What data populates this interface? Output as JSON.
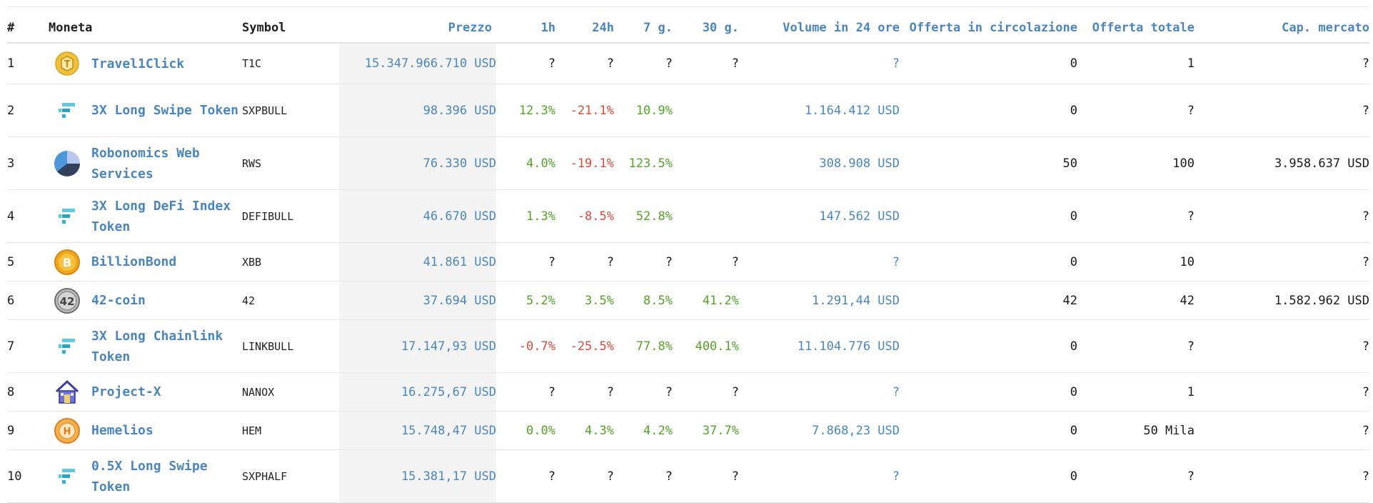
{
  "table": {
    "headers": {
      "rank": "#",
      "coin": "Moneta",
      "symbol": "Symbol",
      "price": "Prezzo",
      "h1": "1h",
      "h24": "24h",
      "d7": "7 g.",
      "d30": "30 g.",
      "volume": "Volume in 24 ore",
      "circ": "Offerta in circolazione",
      "total": "Offerta totale",
      "mcap": "Cap. mercato"
    },
    "rows": [
      {
        "rank": "1",
        "name": "Travel1Click",
        "icon": "travel1click-logo-icon",
        "symbol": "T1C",
        "price": "15.347.966.710 USD",
        "h1": "?",
        "h24": "?",
        "d7": "?",
        "d30": "?",
        "volume": "?",
        "circ": "0",
        "total": "1",
        "mcap": "?"
      },
      {
        "rank": "2",
        "name": "3X Long Swipe Token",
        "icon": "ftx-logo-icon",
        "symbol": "SXPBULL",
        "price": "98.396 USD",
        "h1": "12.3%",
        "h24": "-21.1%",
        "d7": "10.9%",
        "d30": "",
        "volume": "1.164.412 USD",
        "circ": "0",
        "total": "?",
        "mcap": "?"
      },
      {
        "rank": "3",
        "name": "Robonomics Web Services",
        "icon": "robonomics-logo-icon",
        "symbol": "RWS",
        "price": "76.330 USD",
        "h1": "4.0%",
        "h24": "-19.1%",
        "d7": "123.5%",
        "d30": "",
        "volume": "308.908 USD",
        "circ": "50",
        "total": "100",
        "mcap": "3.958.637 USD"
      },
      {
        "rank": "4",
        "name": "3X Long DeFi Index Token",
        "icon": "ftx-logo-icon",
        "symbol": "DEFIBULL",
        "price": "46.670 USD",
        "h1": "1.3%",
        "h24": "-8.5%",
        "d7": "52.8%",
        "d30": "",
        "volume": "147.562 USD",
        "circ": "0",
        "total": "?",
        "mcap": "?"
      },
      {
        "rank": "5",
        "name": "BillionBond",
        "icon": "billionbond-logo-icon",
        "symbol": "XBB",
        "price": "41.861 USD",
        "h1": "?",
        "h24": "?",
        "d7": "?",
        "d30": "?",
        "volume": "?",
        "circ": "0",
        "total": "10",
        "mcap": "?"
      },
      {
        "rank": "6",
        "name": "42-coin",
        "icon": "42coin-logo-icon",
        "symbol": "42",
        "price": "37.694 USD",
        "h1": "5.2%",
        "h24": "3.5%",
        "d7": "8.5%",
        "d30": "41.2%",
        "volume": "1.291,44 USD",
        "circ": "42",
        "total": "42",
        "mcap": "1.582.962 USD"
      },
      {
        "rank": "7",
        "name": "3X Long Chainlink Token",
        "icon": "ftx-logo-icon",
        "symbol": "LINKBULL",
        "price": "17.147,93 USD",
        "h1": "-0.7%",
        "h24": "-25.5%",
        "d7": "77.8%",
        "d30": "400.1%",
        "volume": "11.104.776 USD",
        "circ": "0",
        "total": "?",
        "mcap": "?"
      },
      {
        "rank": "8",
        "name": "Project-X",
        "icon": "projectx-house-icon",
        "symbol": "NANOX",
        "price": "16.275,67 USD",
        "h1": "?",
        "h24": "?",
        "d7": "?",
        "d30": "?",
        "volume": "?",
        "circ": "0",
        "total": "1",
        "mcap": "?"
      },
      {
        "rank": "9",
        "name": "Hemelios",
        "icon": "hemelios-logo-icon",
        "symbol": "HEM",
        "price": "15.748,47 USD",
        "h1": "0.0%",
        "h24": "4.3%",
        "d7": "4.2%",
        "d30": "37.7%",
        "volume": "7.868,23 USD",
        "circ": "0",
        "total": "50 Mila",
        "mcap": "?"
      },
      {
        "rank": "10",
        "name": "0.5X Long Swipe Token",
        "icon": "ftx-logo-icon",
        "symbol": "SXPHALF",
        "price": "15.381,17 USD",
        "h1": "?",
        "h24": "?",
        "d7": "?",
        "d30": "?",
        "volume": "?",
        "circ": "0",
        "total": "?",
        "mcap": "?"
      }
    ]
  },
  "colors": {
    "link_blue": "#4a86ba",
    "positive_green": "#55a228",
    "negative_red": "#d24b3b",
    "price_column_bg": "#f4f4f4"
  }
}
